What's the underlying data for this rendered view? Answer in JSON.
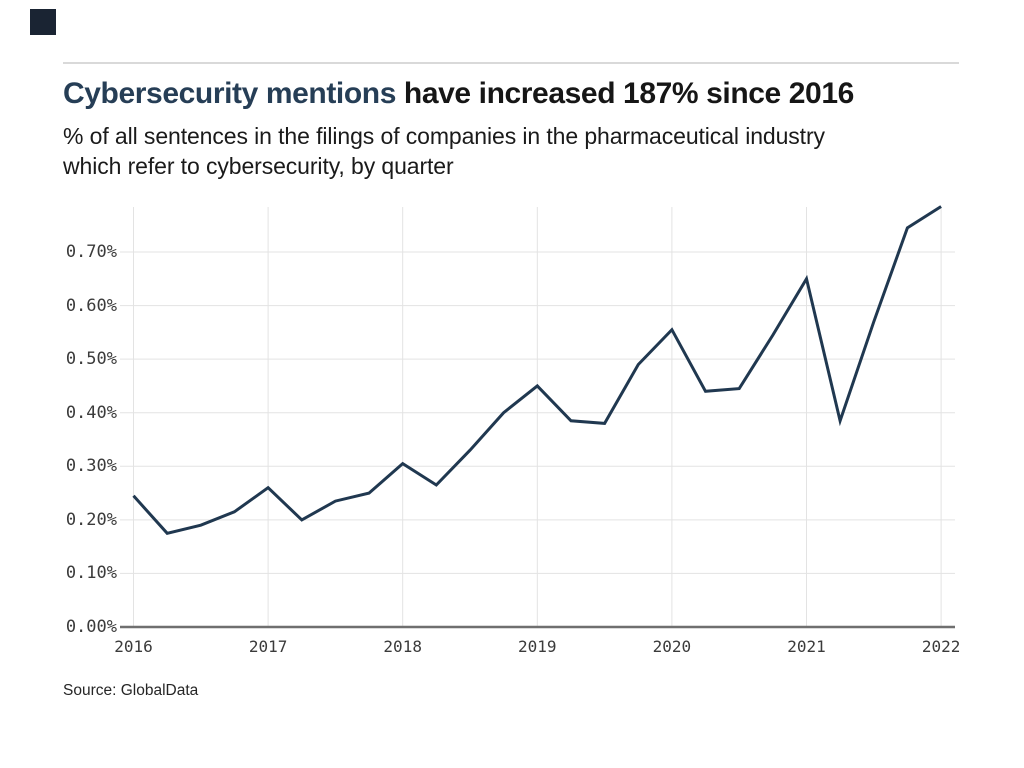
{
  "header": {
    "title_highlight": "Cybersecurity mentions",
    "title_rest": " have increased 187% since 2016",
    "subtitle_line1": "% of all sentences in the filings of companies in the pharmaceutical industry",
    "subtitle_line2": "which refer to cybersecurity, by quarter"
  },
  "footer": {
    "source": "Source: GlobalData"
  },
  "colors": {
    "background": "#ffffff",
    "logo_square": "#1a2433",
    "divider": "#d9d9d9",
    "title_highlight": "#263e56",
    "title_rest": "#161616",
    "subtitle_text": "#1a1a1a",
    "grid": "#e3e3e3",
    "axis": "#6f6f6f",
    "tick_label": "#3b3b3b",
    "line": "#203850",
    "source_text": "#262626"
  },
  "chart_data": {
    "type": "line",
    "title": "Cybersecurity mentions have increased 187% since 2016",
    "subtitle": "% of all sentences in the filings of companies in the pharmaceutical industry which refer to cybersecurity, by quarter",
    "xlabel": "",
    "ylabel": "",
    "legend": "none",
    "grid": true,
    "ylim": [
      0,
      0.79
    ],
    "y_tick_values": [
      0,
      0.1,
      0.2,
      0.3,
      0.4,
      0.5,
      0.6,
      0.7
    ],
    "y_tick_labels": [
      "0.00%",
      "0.10%",
      "0.20%",
      "0.30%",
      "0.40%",
      "0.50%",
      "0.60%",
      "0.70%"
    ],
    "x_tick_labels": [
      "2016",
      "2017",
      "2018",
      "2019",
      "2020",
      "2021",
      "2022"
    ],
    "x": [
      "2016 Q1",
      "2016 Q2",
      "2016 Q3",
      "2016 Q4",
      "2017 Q1",
      "2017 Q2",
      "2017 Q3",
      "2017 Q4",
      "2018 Q1",
      "2018 Q2",
      "2018 Q3",
      "2018 Q4",
      "2019 Q1",
      "2019 Q2",
      "2019 Q3",
      "2019 Q4",
      "2020 Q1",
      "2020 Q2",
      "2020 Q3",
      "2020 Q4",
      "2021 Q1",
      "2021 Q2",
      "2021 Q3",
      "2021 Q4",
      "2022 Q1"
    ],
    "values": [
      0.245,
      0.175,
      0.19,
      0.215,
      0.26,
      0.2,
      0.235,
      0.25,
      0.305,
      0.265,
      0.33,
      0.4,
      0.45,
      0.385,
      0.38,
      0.49,
      0.555,
      0.44,
      0.445,
      0.545,
      0.65,
      0.385,
      0.57,
      0.745,
      0.785
    ],
    "line_color": "#203850"
  }
}
